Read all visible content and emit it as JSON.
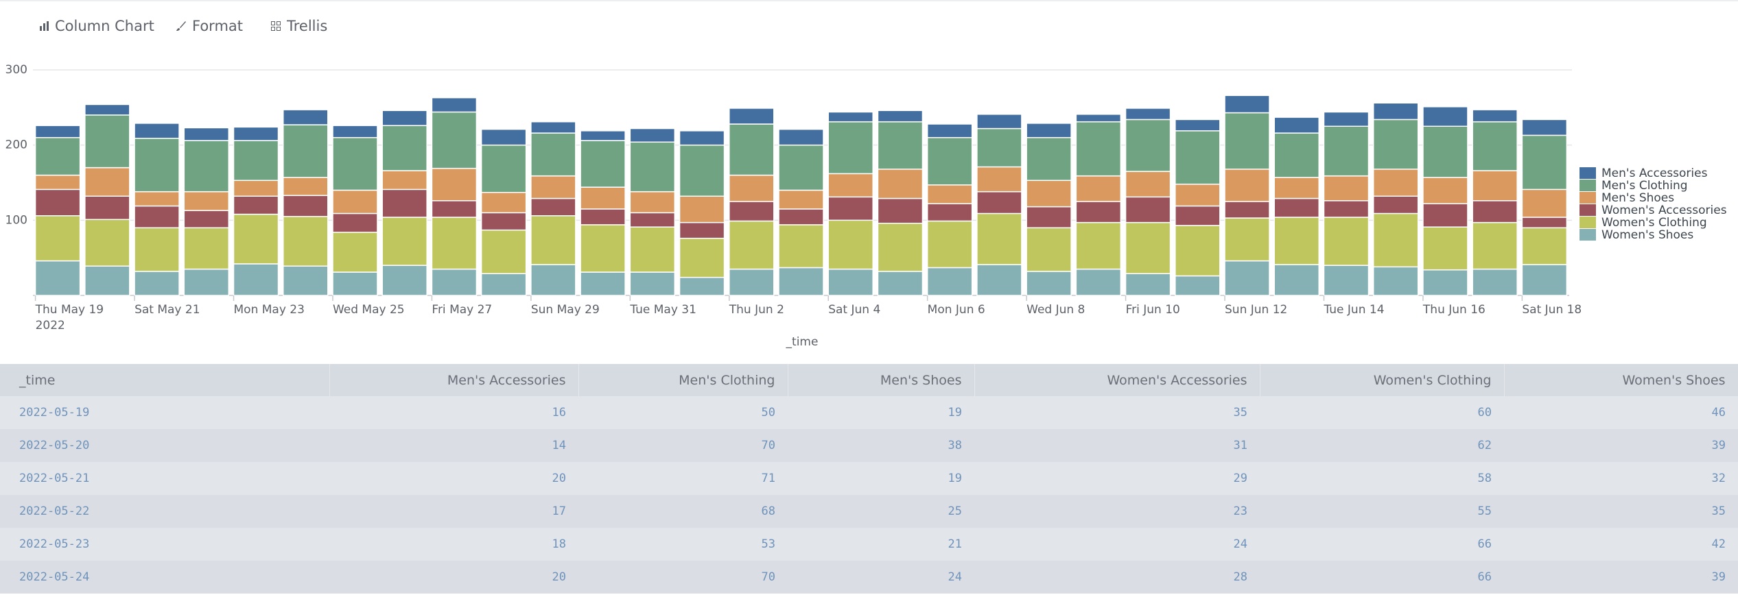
{
  "toolbar": {
    "items": [
      "Column Chart",
      "Format",
      "Trellis"
    ]
  },
  "chart_data": {
    "type": "bar",
    "stacked": true,
    "x_label": "_time",
    "x_sublabel": "2022",
    "categories": [
      "Thu May 19",
      null,
      "Sat May 21",
      null,
      "Mon May 23",
      null,
      "Wed May 25",
      null,
      "Fri May 27",
      null,
      "Sun May 29",
      null,
      "Tue May 31",
      null,
      "Thu Jun 2",
      null,
      "Sat Jun 4",
      null,
      "Mon Jun 6",
      null,
      "Wed Jun 8",
      null,
      "Fri Jun 10",
      null,
      "Sun Jun 12",
      null,
      "Tue Jun 14",
      null,
      "Thu Jun 16",
      null,
      "Sat Jun 18"
    ],
    "ylim": [
      0,
      300
    ],
    "yticks": [
      100,
      200,
      300
    ],
    "grid": true,
    "legend": "right",
    "series": [
      {
        "name": "Men's Accessories",
        "color": "#426fa0",
        "values": [
          16,
          14,
          20,
          17,
          18,
          20,
          16,
          20,
          19,
          21,
          15,
          13,
          18,
          19,
          21,
          21,
          13,
          15,
          18,
          19,
          19,
          10,
          15,
          15,
          23,
          21,
          19,
          22,
          26,
          16,
          21
        ]
      },
      {
        "name": "Men's Clothing",
        "color": "#70a381",
        "values": [
          50,
          70,
          71,
          68,
          53,
          70,
          70,
          60,
          75,
          63,
          57,
          62,
          66,
          68,
          68,
          60,
          69,
          63,
          63,
          51,
          57,
          72,
          69,
          71,
          75,
          59,
          66,
          66,
          68,
          65,
          72
        ]
      },
      {
        "name": "Men's Shoes",
        "color": "#d9995f",
        "values": [
          19,
          38,
          19,
          25,
          21,
          24,
          31,
          25,
          43,
          27,
          30,
          29,
          28,
          35,
          35,
          25,
          31,
          39,
          25,
          33,
          35,
          34,
          34,
          29,
          43,
          28,
          33,
          36,
          35,
          40,
          37
        ]
      },
      {
        "name": "Women's Accessories",
        "color": "#9b535b",
        "values": [
          35,
          31,
          29,
          23,
          24,
          28,
          25,
          37,
          22,
          23,
          23,
          21,
          19,
          21,
          26,
          21,
          31,
          33,
          23,
          29,
          28,
          28,
          34,
          26,
          22,
          25,
          22,
          23,
          31,
          29,
          14
        ]
      },
      {
        "name": "Women's Clothing",
        "color": "#bfc65e",
        "values": [
          60,
          62,
          58,
          55,
          66,
          66,
          53,
          64,
          69,
          58,
          65,
          63,
          60,
          52,
          64,
          57,
          65,
          64,
          62,
          68,
          58,
          62,
          68,
          67,
          57,
          63,
          64,
          71,
          57,
          62,
          49
        ]
      },
      {
        "name": "Women's Shoes",
        "color": "#85b1b4",
        "values": [
          46,
          39,
          32,
          35,
          42,
          39,
          31,
          40,
          35,
          29,
          41,
          31,
          31,
          24,
          35,
          37,
          35,
          32,
          37,
          41,
          32,
          35,
          29,
          26,
          46,
          41,
          40,
          38,
          34,
          35,
          41
        ]
      }
    ]
  },
  "table": {
    "header": [
      "_time",
      "Men's Accessories",
      "Men's Clothing",
      "Men's Shoes",
      "Women's Accessories",
      "Women's Clothing",
      "Women's Shoes"
    ],
    "rows": [
      [
        "2022-05-19",
        "16",
        "50",
        "19",
        "35",
        "60",
        "46"
      ],
      [
        "2022-05-20",
        "14",
        "70",
        "38",
        "31",
        "62",
        "39"
      ],
      [
        "2022-05-21",
        "20",
        "71",
        "19",
        "29",
        "58",
        "32"
      ],
      [
        "2022-05-22",
        "17",
        "68",
        "25",
        "23",
        "55",
        "35"
      ],
      [
        "2022-05-23",
        "18",
        "53",
        "21",
        "24",
        "66",
        "42"
      ],
      [
        "2022-05-24",
        "20",
        "70",
        "24",
        "28",
        "66",
        "39"
      ]
    ]
  }
}
